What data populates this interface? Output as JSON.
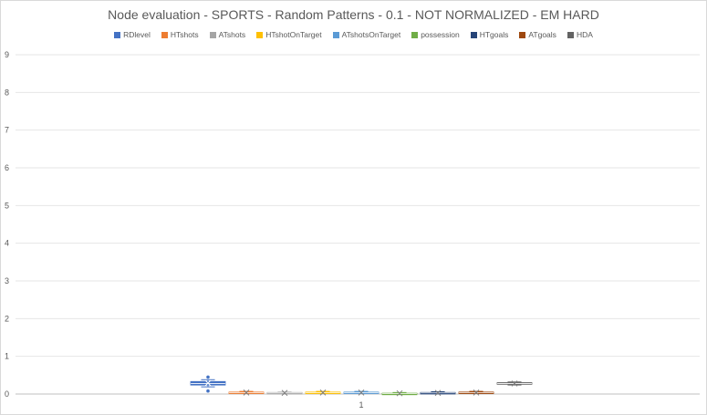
{
  "chart_data": {
    "type": "box",
    "title": "Node evaluation - SPORTS - Random Patterns - 0.1 - NOT NORMALIZED - EM HARD",
    "xlabel": "",
    "ylabel": "",
    "categories": [
      "1"
    ],
    "ylim": [
      0,
      9
    ],
    "yticks": [
      0,
      1,
      2,
      3,
      4,
      5,
      6,
      7,
      8,
      9
    ],
    "grid": true,
    "legend_position": "top",
    "series": [
      {
        "name": "RDlevel",
        "color": "#4472c4",
        "min": 0.19,
        "q1": 0.24,
        "median": 0.28,
        "q3": 0.33,
        "max": 0.38,
        "mean": 0.29,
        "outliers": [
          0.08,
          0.45
        ]
      },
      {
        "name": "HTshots",
        "color": "#ed7d31",
        "min": 0.02,
        "q1": 0.03,
        "median": 0.04,
        "q3": 0.05,
        "max": 0.07,
        "mean": 0.04,
        "outliers": []
      },
      {
        "name": "ATshots",
        "color": "#a5a5a5",
        "min": 0.01,
        "q1": 0.02,
        "median": 0.03,
        "q3": 0.04,
        "max": 0.05,
        "mean": 0.03,
        "outliers": []
      },
      {
        "name": "HTshotOnTarget",
        "color": "#ffc000",
        "min": 0.02,
        "q1": 0.03,
        "median": 0.04,
        "q3": 0.05,
        "max": 0.07,
        "mean": 0.04,
        "outliers": []
      },
      {
        "name": "ATshotsOnTarget",
        "color": "#5b9bd5",
        "min": 0.02,
        "q1": 0.03,
        "median": 0.04,
        "q3": 0.05,
        "max": 0.07,
        "mean": 0.04,
        "outliers": []
      },
      {
        "name": "possession",
        "color": "#70ad47",
        "min": 0.0,
        "q1": 0.01,
        "median": 0.015,
        "q3": 0.02,
        "max": 0.04,
        "mean": 0.02,
        "outliers": []
      },
      {
        "name": "HTgoals",
        "color": "#264478",
        "min": 0.01,
        "q1": 0.02,
        "median": 0.03,
        "q3": 0.04,
        "max": 0.06,
        "mean": 0.03,
        "outliers": []
      },
      {
        "name": "ATgoals",
        "color": "#9e480e",
        "min": 0.02,
        "q1": 0.03,
        "median": 0.04,
        "q3": 0.05,
        "max": 0.07,
        "mean": 0.04,
        "outliers": []
      },
      {
        "name": "HDA",
        "color": "#636363",
        "min": 0.24,
        "q1": 0.26,
        "median": 0.28,
        "q3": 0.3,
        "max": 0.32,
        "mean": 0.28,
        "outliers": []
      }
    ]
  }
}
